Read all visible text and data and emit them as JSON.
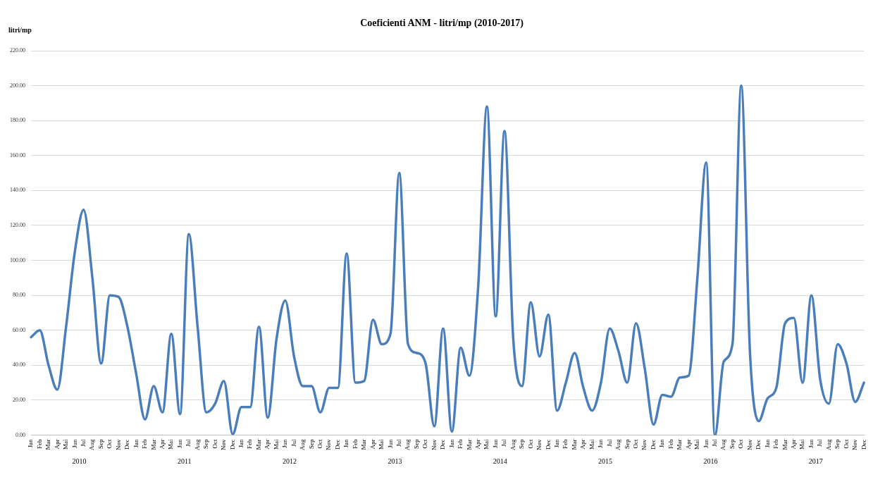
{
  "chart_data": {
    "type": "line",
    "title": "Coeficienti ANM - litri/mp (2010-2017)",
    "ylabel": "litri/mp",
    "categories": [
      "Jan",
      "Feb",
      "Mar",
      "Apr",
      "Mai",
      "Jun",
      "Jul",
      "Aug",
      "Sep",
      "Oct",
      "Nov",
      "Dec",
      "Jan",
      "Feb",
      "Mar",
      "Apr",
      "Mai",
      "Jun",
      "Jul",
      "Aug",
      "Sep",
      "Oct",
      "Nov",
      "Dec",
      "Jan",
      "Feb",
      "Mar",
      "Apr",
      "Mai",
      "Jun",
      "Jul",
      "Aug",
      "Sep",
      "Oct",
      "Nov",
      "Dec",
      "Jan",
      "Feb",
      "Mar",
      "Apr",
      "Mai",
      "Jun",
      "Jul",
      "Aug",
      "Sep",
      "Oct",
      "Nov",
      "Dec",
      "Jan",
      "Feb",
      "Mar",
      "Apr",
      "Mai",
      "Jun",
      "Jul",
      "Aug",
      "Sep",
      "Oct",
      "Nov",
      "Dec",
      "Jan",
      "Feb",
      "Mar",
      "Apr",
      "Mai",
      "Jun",
      "Jul",
      "Aug",
      "Sep",
      "Oct",
      "Nov",
      "Dec",
      "Jan",
      "Feb",
      "Mar",
      "Apr",
      "Mai",
      "Jun",
      "Jul",
      "Aug",
      "Sep",
      "Oct",
      "Nov",
      "Dec",
      "Jan",
      "Feb",
      "Mar",
      "Apr",
      "Mai",
      "Jun",
      "Jul",
      "Aug",
      "Sep",
      "Oct",
      "Nov",
      "Dec"
    ],
    "series": [
      {
        "color": "#4a7ebb",
        "values": [
          56,
          60,
          40,
          26,
          62,
          105,
          129,
          90,
          41,
          80,
          79,
          62,
          35,
          9,
          28,
          13,
          58,
          12,
          115,
          62,
          13,
          18,
          31,
          0.5,
          16,
          16,
          62,
          10,
          55,
          77,
          45,
          28,
          28,
          13,
          27,
          27,
          104,
          30,
          31,
          66,
          52,
          58,
          150,
          52,
          47,
          41,
          5,
          61,
          2,
          50,
          34,
          85,
          188,
          68,
          174,
          55,
          28,
          76,
          45,
          69,
          14,
          30,
          47,
          27,
          14,
          30,
          61,
          48,
          30,
          64,
          38,
          6,
          23,
          22,
          33,
          34,
          90,
          156,
          0,
          42,
          52,
          200,
          47,
          8,
          21,
          27,
          64,
          67,
          30,
          80,
          32,
          18,
          52,
          41,
          19,
          30
        ]
      }
    ],
    "ylim": [
      0,
      220
    ],
    "yticks": [
      {
        "value": 0,
        "label": "0.00"
      },
      {
        "value": 20,
        "label": "20.00"
      },
      {
        "value": 40,
        "label": "40.00"
      },
      {
        "value": 60,
        "label": "60.00"
      },
      {
        "value": 80,
        "label": "80.00"
      },
      {
        "value": 100,
        "label": "100.00"
      },
      {
        "value": 120,
        "label": "120.00"
      },
      {
        "value": 140,
        "label": "140.00"
      },
      {
        "value": 160,
        "label": "160.00"
      },
      {
        "value": 180,
        "label": "180.00"
      },
      {
        "value": 200,
        "label": "200.00"
      },
      {
        "value": 220,
        "label": "220.00"
      }
    ],
    "annotations": [
      "2010",
      "2011",
      "2012",
      "2013",
      "2014",
      "2015",
      "2016",
      "2017"
    ],
    "grid": "y",
    "legend": false,
    "marker": "none",
    "line_style": "solid"
  }
}
